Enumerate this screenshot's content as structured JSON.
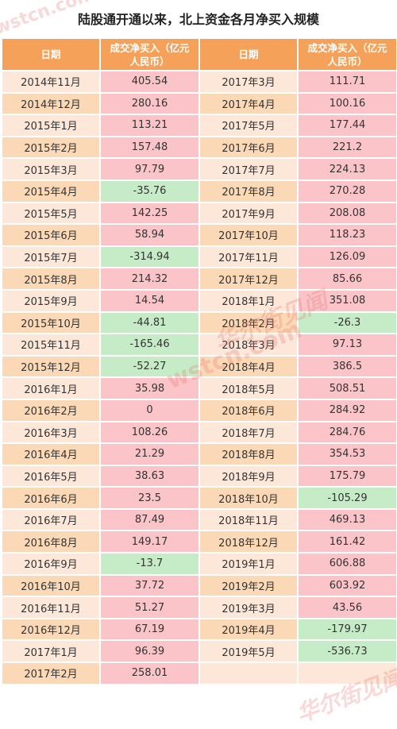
{
  "title": "陆股通开通以来，北上资金各月净买入规模",
  "headers": {
    "date": "日期",
    "amount_line1": "成交净买入（亿元",
    "amount_line2": "人民币）"
  },
  "left": [
    {
      "date": "2014年11月",
      "value": "405.54"
    },
    {
      "date": "2014年12月",
      "value": "280.16"
    },
    {
      "date": "2015年1月",
      "value": "113.21"
    },
    {
      "date": "2015年2月",
      "value": "157.48"
    },
    {
      "date": "2015年3月",
      "value": "97.79"
    },
    {
      "date": "2015年4月",
      "value": "-35.76"
    },
    {
      "date": "2015年5月",
      "value": "142.25"
    },
    {
      "date": "2015年6月",
      "value": "58.94"
    },
    {
      "date": "2015年7月",
      "value": "-314.94"
    },
    {
      "date": "2015年8月",
      "value": "214.32"
    },
    {
      "date": "2015年9月",
      "value": "14.54"
    },
    {
      "date": "2015年10月",
      "value": "-44.81"
    },
    {
      "date": "2015年11月",
      "value": "-165.46"
    },
    {
      "date": "2015年12月",
      "value": "-52.27"
    },
    {
      "date": "2016年1月",
      "value": "35.98"
    },
    {
      "date": "2016年2月",
      "value": "0"
    },
    {
      "date": "2016年3月",
      "value": "108.26"
    },
    {
      "date": "2016年4月",
      "value": "21.29"
    },
    {
      "date": "2016年5月",
      "value": "38.63"
    },
    {
      "date": "2016年6月",
      "value": "23.5"
    },
    {
      "date": "2016年7月",
      "value": "87.49"
    },
    {
      "date": "2016年8月",
      "value": "149.17"
    },
    {
      "date": "2016年9月",
      "value": "-13.7"
    },
    {
      "date": "2016年10月",
      "value": "37.72"
    },
    {
      "date": "2016年11月",
      "value": "51.27"
    },
    {
      "date": "2016年12月",
      "value": "67.19"
    },
    {
      "date": "2017年1月",
      "value": "96.39"
    },
    {
      "date": "2017年2月",
      "value": "258.01"
    }
  ],
  "right": [
    {
      "date": "2017年3月",
      "value": "111.71"
    },
    {
      "date": "2017年4月",
      "value": "100.16"
    },
    {
      "date": "2017年5月",
      "value": "177.44"
    },
    {
      "date": "2017年6月",
      "value": "221.2"
    },
    {
      "date": "2017年7月",
      "value": "224.13"
    },
    {
      "date": "2017年8月",
      "value": "270.28"
    },
    {
      "date": "2017年9月",
      "value": "208.08"
    },
    {
      "date": "2017年10月",
      "value": "118.23"
    },
    {
      "date": "2017年11月",
      "value": "126.09"
    },
    {
      "date": "2017年12月",
      "value": "85.66"
    },
    {
      "date": "2018年1月",
      "value": "351.08"
    },
    {
      "date": "2018年2月",
      "value": "-26.3"
    },
    {
      "date": "2018年3月",
      "value": "97.13"
    },
    {
      "date": "2018年4月",
      "value": "386.5"
    },
    {
      "date": "2018年5月",
      "value": "508.51"
    },
    {
      "date": "2018年6月",
      "value": "284.92"
    },
    {
      "date": "2018年7月",
      "value": "284.76"
    },
    {
      "date": "2018年8月",
      "value": "354.53"
    },
    {
      "date": "2018年9月",
      "value": "175.79"
    },
    {
      "date": "2018年10月",
      "value": "-105.29"
    },
    {
      "date": "2018年11月",
      "value": "469.13"
    },
    {
      "date": "2018年12月",
      "value": "161.42"
    },
    {
      "date": "2019年1月",
      "value": "606.88"
    },
    {
      "date": "2019年2月",
      "value": "603.92"
    },
    {
      "date": "2019年3月",
      "value": "43.56"
    },
    {
      "date": "2019年4月",
      "value": "-179.97"
    },
    {
      "date": "2019年5月",
      "value": "-536.73"
    },
    {
      "date": "",
      "value": ""
    }
  ],
  "watermarks": [
    "wstcn.com",
    "华尔街见闻",
    "wstcn.com",
    "华尔街见闻"
  ],
  "colors": {
    "header": "#f5a15a",
    "positive": "#fbc4c9",
    "negative": "#c6ecc7",
    "date_odd": "#fde7d8",
    "date_even": "#fbd9b6"
  }
}
